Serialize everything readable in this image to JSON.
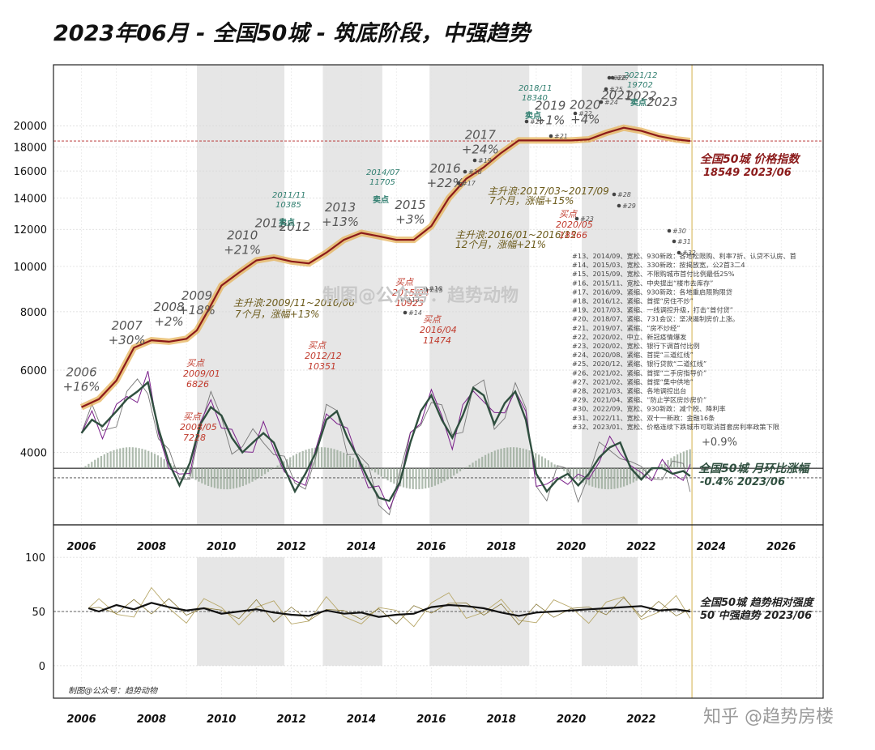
{
  "title": "2023年06月 - 全国50城 - 筑底阶段，中强趋势",
  "watermarks": {
    "center": "制图@公众号：趋势动物",
    "bottom_left": "制图@公众号：趋势动物",
    "bottom_right": "知乎 @趋势房楼"
  },
  "colors": {
    "price_line": "#8b1a1a",
    "price_band": "#e6b35a",
    "mom_line": "#2f4f3f",
    "mom_bars": "#9aaa9a",
    "purple_series": "#7a1f8a",
    "grey_series": "#777777",
    "rsi_line": "#111111",
    "rsi_alt": "#b8a86a",
    "shade": "#e6e6e6",
    "buy": "#c0392b",
    "sell": "#2e7d6e",
    "ref_line_red": "#b22222",
    "ref_line_dark": "#444444",
    "vline": "#d4b04a"
  },
  "chart_data": [
    {
      "type": "line",
      "name": "price_panel",
      "y_scale": "log",
      "yticks": [
        4000,
        6000,
        8000,
        10000,
        12000,
        14000,
        16000,
        18000,
        20000
      ],
      "xticks": [
        "2006",
        "2008",
        "2010",
        "2012",
        "2014",
        "2016",
        "2018",
        "2020",
        "2022",
        "2024",
        "2026"
      ],
      "xlim": [
        2005.2,
        2027.2
      ],
      "ylim": [
        2800,
        27000
      ],
      "shaded_periods": [
        [
          2009.3,
          2011.8
        ],
        [
          2012.9,
          2014.6
        ],
        [
          2015.95,
          2018.8
        ],
        [
          2020.3,
          2021.9
        ]
      ],
      "price_series": {
        "label": "全国50城 价格指数",
        "latest_label": "18549 2023/06",
        "x": [
          2006.0,
          2006.5,
          2007.0,
          2007.5,
          2008.0,
          2008.5,
          2009.0,
          2009.3,
          2009.6,
          2010.0,
          2010.5,
          2011.0,
          2011.5,
          2012.0,
          2012.5,
          2013.0,
          2013.5,
          2014.0,
          2014.5,
          2015.0,
          2015.5,
          2016.0,
          2016.5,
          2017.0,
          2017.5,
          2018.0,
          2018.5,
          2019.0,
          2019.5,
          2020.0,
          2020.5,
          2021.0,
          2021.5,
          2022.0,
          2022.5,
          2023.0,
          2023.4
        ],
        "y": [
          5000,
          5200,
          5700,
          6700,
          6950,
          6900,
          7000,
          7300,
          8000,
          9100,
          9700,
          10300,
          10450,
          10250,
          10150,
          10700,
          11400,
          11800,
          11600,
          11400,
          11400,
          12200,
          14000,
          15400,
          16300,
          17500,
          18600,
          18600,
          18600,
          18600,
          18700,
          19300,
          19800,
          19500,
          19000,
          18700,
          18549
        ]
      },
      "mom_series": {
        "label": "全国50城 月环比涨幅",
        "latest_label": "-0.4% 2023/06",
        "x": [
          2006.0,
          2006.3,
          2006.6,
          2007.0,
          2007.3,
          2007.6,
          2007.9,
          2008.2,
          2008.5,
          2008.8,
          2009.1,
          2009.4,
          2009.7,
          2010.0,
          2010.3,
          2010.6,
          2010.9,
          2011.2,
          2011.5,
          2011.8,
          2012.1,
          2012.4,
          2012.7,
          2013.0,
          2013.3,
          2013.6,
          2013.9,
          2014.2,
          2014.5,
          2014.8,
          2015.1,
          2015.4,
          2015.7,
          2016.0,
          2016.3,
          2016.6,
          2016.9,
          2017.2,
          2017.5,
          2017.8,
          2018.1,
          2018.4,
          2018.7,
          2019.0,
          2019.3,
          2019.6,
          2019.9,
          2020.2,
          2020.5,
          2020.8,
          2021.1,
          2021.4,
          2021.7,
          2022.0,
          2022.3,
          2022.6,
          2022.9,
          2023.2,
          2023.4
        ],
        "y": [
          4400,
          4700,
          4550,
          4900,
          5200,
          5400,
          5650,
          4500,
          3800,
          3400,
          3800,
          4600,
          5000,
          4800,
          4300,
          4000,
          4200,
          4400,
          4200,
          3700,
          3300,
          3600,
          4000,
          4700,
          4900,
          4300,
          3900,
          3500,
          3200,
          3150,
          3450,
          4200,
          4900,
          5300,
          4700,
          4300,
          4800,
          5500,
          5300,
          4600,
          5100,
          5400,
          4700,
          3600,
          3300,
          3500,
          3600,
          3400,
          3600,
          3900,
          4100,
          4200,
          3700,
          3500,
          3700,
          3700,
          3600,
          3650,
          3560
        ]
      },
      "annotations_years": [
        {
          "label": "2006",
          "x": 2006.0
        },
        {
          "label": "+16%",
          "x": 2006.0
        },
        {
          "label": "2007",
          "x": 2007.3
        },
        {
          "label": "+30%",
          "x": 2007.3
        },
        {
          "label": "2008",
          "x": 2008.5
        },
        {
          "label": "+2%",
          "x": 2008.5
        },
        {
          "label": "2009",
          "x": 2009.3
        },
        {
          "label": "+18%",
          "x": 2009.3
        },
        {
          "label": "2010",
          "x": 2010.6
        },
        {
          "label": "+21%",
          "x": 2010.6
        },
        {
          "label": "2011",
          "x": 2011.4
        },
        {
          "label": "2012",
          "x": 2012.1
        },
        {
          "label": "2013",
          "x": 2013.4
        },
        {
          "label": "+13%",
          "x": 2013.4
        },
        {
          "label": "2015",
          "x": 2015.4
        },
        {
          "label": "+3%",
          "x": 2015.4
        },
        {
          "label": "2016",
          "x": 2016.4
        },
        {
          "label": "+22%",
          "x": 2016.4
        },
        {
          "label": "2017",
          "x": 2017.4
        },
        {
          "label": "+24%",
          "x": 2017.4
        },
        {
          "label": "2019",
          "x": 2019.4
        },
        {
          "label": "+1%",
          "x": 2019.4
        },
        {
          "label": "2020",
          "x": 2020.4
        },
        {
          "label": "+4%",
          "x": 2020.4
        },
        {
          "label": "2021",
          "x": 2021.3
        },
        {
          "label": "2022",
          "x": 2022.0
        },
        {
          "label": "2023",
          "x": 2022.6
        }
      ],
      "trend_notes": [
        "主升浪:2009/11~2010/06",
        "7个月，涨幅+13%",
        "主升浪:2017/03~2017/09",
        "7个月，涨幅+15%",
        "主升浪:2016/01~2016/12",
        "12个月，涨幅+21%"
      ],
      "buy_points": [
        {
          "label": "买点",
          "date": "2009/01",
          "value": "6826"
        },
        {
          "label": "买点",
          "date": "2008/05",
          "value": "7228"
        },
        {
          "label": "买点",
          "date": "2012/12",
          "value": "10351"
        },
        {
          "label": "买点",
          "date": "2015/04",
          "value": "10923"
        },
        {
          "label": "买点",
          "date": "2016/04",
          "value": "11474"
        },
        {
          "label": "买点",
          "date": "2020/05",
          "value": "18566"
        }
      ],
      "sell_points": [
        {
          "label": "卖点",
          "date": "2011/11",
          "value": "10385"
        },
        {
          "label": "卖点",
          "date": "2014/07",
          "value": "11705"
        },
        {
          "label": "卖点",
          "date": "2018/11",
          "value": "18340"
        },
        {
          "label": "卖点",
          "date": "2021/12",
          "value": "19702"
        }
      ],
      "event_notes": [
        "#13、2014/09、宽松、930新政：各地松限购、利率7折、认贷不认房、首",
        "#14、2015/03、宽松、330新政：按揭放宽，公2首3二4",
        "#15、2015/09、宽松、不限购城市首付比例最低25%",
        "#16、2015/11、宽松、中央提出“楼市去库存”",
        "#17、2016/09、紧缩、930新政：各地重启限购限贷",
        "#18、2016/12、紧缩、首提“房住不炒”",
        "#19、2017/03、紧缩、一线调控升级，打击“首付贷”",
        "#20、2018/07、紧缩、731会议：坚决遏制房价上涨。",
        "#21、2019/07、紧缩、“房不炒经”",
        "#22、2020/02、中立、新冠疫情爆发",
        "#23、2020/02、宽松、银行下调首付比例",
        "#24、2020/08、紧缩、首提“三道红线”",
        "#25、2020/12、紧缩、银行贷款“二道红线”",
        "#26、2021/02、紧缩、首提“二手房指导价”",
        "#27、2021/02、紧缩、首提“集中供地”",
        "#28、2021/03、紧缩、各地调控出台",
        "#29、2021/04、紧缩、“防止学区房炒房价”",
        "#30、2022/09、宽松、930新政：减个税、降利率",
        "#31、2022/11、宽松、双十一新政：金融16条",
        "#32、2023/01、宽松、价格连续下跌城市可取消首套房利率政策下限"
      ],
      "event_markers": [
        "#13",
        "#14",
        "#15",
        "#16",
        "#17",
        "#18",
        "#19",
        "#20",
        "#21",
        "#22",
        "#23",
        "#24",
        "#25",
        "#26",
        "#27",
        "#28",
        "#29",
        "#30",
        "#31",
        "#32"
      ],
      "extra_labels": [
        "+0.9%"
      ]
    },
    {
      "type": "line",
      "name": "rsi_panel",
      "yticks": [
        0,
        50,
        100
      ],
      "ylim": [
        -30,
        130
      ],
      "label": "全国50城 趋势相对强度",
      "latest_label": "50 中强趋势 2023/06",
      "x": [
        2006.2,
        2006.5,
        2007.0,
        2007.5,
        2008.0,
        2008.5,
        2009.0,
        2009.5,
        2010.0,
        2010.5,
        2011.0,
        2011.5,
        2012.0,
        2012.5,
        2013.0,
        2013.5,
        2014.0,
        2014.5,
        2015.0,
        2015.5,
        2016.0,
        2016.5,
        2017.0,
        2017.5,
        2018.0,
        2018.5,
        2019.0,
        2019.5,
        2020.0,
        2020.5,
        2021.0,
        2021.5,
        2022.0,
        2022.5,
        2023.0,
        2023.4
      ],
      "y": [
        53,
        50,
        56,
        52,
        58,
        54,
        51,
        53,
        48,
        50,
        52,
        49,
        47,
        46,
        51,
        48,
        49,
        45,
        47,
        48,
        54,
        56,
        55,
        53,
        49,
        46,
        49,
        50,
        51,
        52,
        53,
        54,
        55,
        51,
        52,
        50
      ]
    }
  ]
}
